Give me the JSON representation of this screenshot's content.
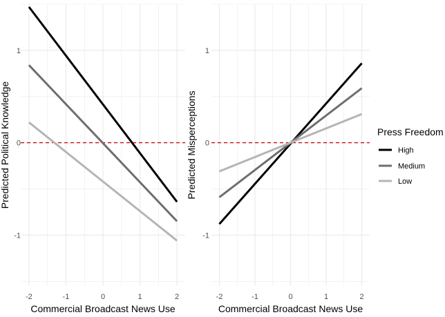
{
  "chart_data": [
    {
      "type": "line",
      "panel": "left",
      "title": "",
      "xlabel": "Commercial Broadcast News Use",
      "ylabel": "Predicted Political Knowledge",
      "xlim": [
        -2,
        2
      ],
      "ylim": [
        -1.55,
        1.5
      ],
      "xticks": [
        -2,
        -1,
        0,
        1,
        2
      ],
      "yticks": [
        -1,
        0,
        1
      ],
      "grid": true,
      "reference_line": {
        "y": 0,
        "color": "#cc0000",
        "style": "dashed"
      },
      "series": [
        {
          "name": "High",
          "x": [
            -2,
            2
          ],
          "values": [
            1.47,
            -0.64
          ]
        },
        {
          "name": "Medium",
          "x": [
            -2,
            2
          ],
          "values": [
            0.84,
            -0.85
          ]
        },
        {
          "name": "Low",
          "x": [
            -2,
            2
          ],
          "values": [
            0.22,
            -1.06
          ]
        }
      ]
    },
    {
      "type": "line",
      "panel": "right",
      "title": "",
      "xlabel": "Commercial Broadcast News Use",
      "ylabel": "Predicted Misperceptions",
      "xlim": [
        -2,
        2
      ],
      "ylim": [
        -1.55,
        1.5
      ],
      "xticks": [
        -2,
        -1,
        0,
        1,
        2
      ],
      "yticks": [
        -1,
        0,
        1
      ],
      "grid": true,
      "reference_line": {
        "y": 0,
        "color": "#cc0000",
        "style": "dashed"
      },
      "series": [
        {
          "name": "High",
          "x": [
            -2,
            2
          ],
          "values": [
            -0.88,
            0.86
          ]
        },
        {
          "name": "Medium",
          "x": [
            -2,
            2
          ],
          "values": [
            -0.59,
            0.59
          ]
        },
        {
          "name": "Low",
          "x": [
            -2,
            2
          ],
          "values": [
            -0.31,
            0.31
          ]
        }
      ]
    }
  ],
  "legend": {
    "title": "Press Freedom",
    "placement": "right",
    "items": [
      {
        "label": "High",
        "color": "#000000"
      },
      {
        "label": "Medium",
        "color": "#6e6e6e"
      },
      {
        "label": "Low",
        "color": "#b5b5b5"
      }
    ]
  },
  "colors": {
    "grid": "#ebebeb",
    "reference": "#cc0000",
    "High": "#000000",
    "Medium": "#6e6e6e",
    "Low": "#b5b5b5"
  }
}
